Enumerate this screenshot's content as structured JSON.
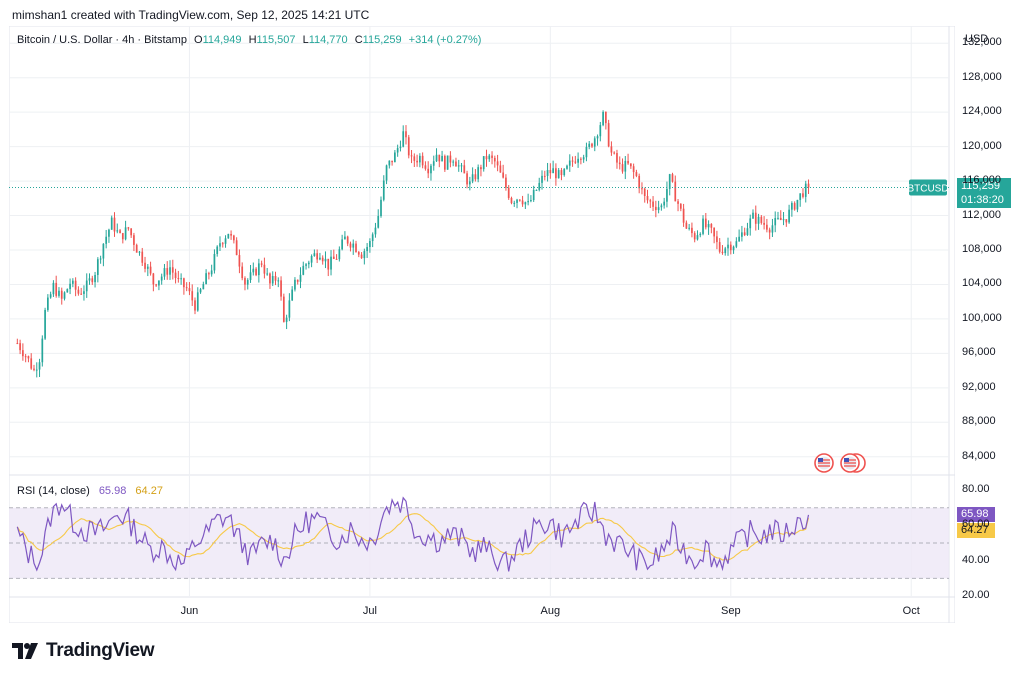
{
  "header": {
    "credit": "mimshan1 created with TradingView.com, Sep 12, 2025 14:21 UTC"
  },
  "legend": {
    "symbol": "Bitcoin / U.S. Dollar · 4h · Bitstamp",
    "open_label": "O",
    "open": "114,949",
    "high_label": "H",
    "high": "115,507",
    "low_label": "L",
    "low": "114,770",
    "close_label": "C",
    "close": "115,259",
    "change": "+314 (+0.27%)"
  },
  "price_axis": {
    "currency": "USD",
    "ticks": [
      "132,000",
      "128,000",
      "124,000",
      "120,000",
      "116,000",
      "112,000",
      "108,000",
      "104,000",
      "100,000",
      "96,000",
      "92,000",
      "88,000",
      "84,000"
    ],
    "tag_symbol": "BTCUSD",
    "tag_price": "115,259",
    "tag_countdown": "01:38:20"
  },
  "rsi": {
    "title": "RSI (14, close)",
    "value": "65.98",
    "ma_value": "64.27",
    "ticks": [
      "80.00",
      "60.00",
      "40.00",
      "20.00"
    ]
  },
  "time_axis": {
    "labels": [
      "Jun",
      "Jul",
      "Aug",
      "Sep",
      "Oct"
    ]
  },
  "footer": {
    "brand": "TradingView"
  },
  "colors": {
    "up": "#26a69a",
    "down": "#ef5350",
    "rsi_line": "#7e57c2",
    "rsi_ma": "#f7c948",
    "rsi_band": "#ede7f6",
    "grid": "#eef0f3",
    "last_price": "#26a69a"
  },
  "chart_data": {
    "type": "candlestick",
    "timeframe": "4h",
    "price_range": [
      82000,
      134000
    ],
    "rsi_range": [
      20,
      88
    ],
    "rsi_bands": [
      70,
      30
    ],
    "last_price": 115259,
    "path": [
      [
        0,
        97200
      ],
      [
        3,
        95800
      ],
      [
        6,
        94000
      ],
      [
        8,
        95500
      ],
      [
        10,
        100800
      ],
      [
        13,
        103800
      ],
      [
        16,
        102200
      ],
      [
        19,
        104200
      ],
      [
        22,
        103000
      ],
      [
        25,
        103800
      ],
      [
        28,
        105500
      ],
      [
        31,
        108800
      ],
      [
        34,
        111200
      ],
      [
        37,
        109500
      ],
      [
        40,
        110500
      ],
      [
        43,
        108200
      ],
      [
        46,
        106500
      ],
      [
        49,
        104200
      ],
      [
        52,
        105000
      ],
      [
        55,
        106000
      ],
      [
        58,
        104300
      ],
      [
        61,
        103500
      ],
      [
        64,
        101600
      ],
      [
        67,
        104000
      ],
      [
        70,
        106000
      ],
      [
        73,
        108900
      ],
      [
        76,
        110100
      ],
      [
        79,
        107800
      ],
      [
        82,
        104200
      ],
      [
        85,
        105200
      ],
      [
        88,
        106600
      ],
      [
        91,
        104000
      ],
      [
        94,
        105000
      ],
      [
        96,
        99500
      ],
      [
        98,
        101800
      ],
      [
        100,
        104000
      ],
      [
        103,
        106000
      ],
      [
        106,
        107200
      ],
      [
        109,
        107800
      ],
      [
        112,
        106200
      ],
      [
        115,
        107200
      ],
      [
        118,
        109300
      ],
      [
        121,
        108700
      ],
      [
        124,
        107600
      ],
      [
        127,
        108800
      ],
      [
        130,
        112000
      ],
      [
        133,
        117500
      ],
      [
        136,
        119000
      ],
      [
        139,
        121500
      ],
      [
        142,
        118300
      ],
      [
        145,
        118800
      ],
      [
        148,
        117600
      ],
      [
        151,
        119200
      ],
      [
        154,
        118000
      ],
      [
        157,
        118800
      ],
      [
        160,
        117200
      ],
      [
        163,
        115600
      ],
      [
        166,
        117200
      ],
      [
        169,
        118800
      ],
      [
        172,
        118200
      ],
      [
        175,
        116000
      ],
      [
        178,
        113800
      ],
      [
        181,
        114200
      ],
      [
        184,
        113200
      ],
      [
        187,
        115000
      ],
      [
        190,
        116800
      ],
      [
        193,
        117200
      ],
      [
        196,
        116300
      ],
      [
        199,
        117900
      ],
      [
        202,
        119100
      ],
      [
        205,
        119400
      ],
      [
        208,
        121100
      ],
      [
        211,
        123500
      ],
      [
        214,
        119200
      ],
      [
        217,
        117600
      ],
      [
        220,
        117800
      ],
      [
        223,
        116500
      ],
      [
        226,
        114000
      ],
      [
        229,
        113300
      ],
      [
        232,
        113000
      ],
      [
        235,
        116200
      ],
      [
        238,
        113400
      ],
      [
        241,
        110500
      ],
      [
        244,
        109600
      ],
      [
        247,
        111000
      ],
      [
        250,
        110000
      ],
      [
        253,
        108000
      ],
      [
        256,
        108600
      ],
      [
        259,
        108800
      ],
      [
        262,
        110400
      ],
      [
        265,
        111800
      ],
      [
        268,
        111200
      ],
      [
        271,
        110700
      ],
      [
        274,
        111300
      ],
      [
        277,
        111800
      ],
      [
        280,
        113300
      ],
      [
        283,
        114800
      ],
      [
        285,
        115259
      ]
    ],
    "rsi_path": [
      [
        0,
        56
      ],
      [
        4,
        44
      ],
      [
        8,
        40
      ],
      [
        12,
        65
      ],
      [
        16,
        74
      ],
      [
        20,
        62
      ],
      [
        24,
        57
      ],
      [
        28,
        56
      ],
      [
        32,
        59
      ],
      [
        36,
        67
      ],
      [
        40,
        63
      ],
      [
        44,
        54
      ],
      [
        48,
        46
      ],
      [
        52,
        48
      ],
      [
        56,
        41
      ],
      [
        60,
        38
      ],
      [
        64,
        50
      ],
      [
        68,
        55
      ],
      [
        72,
        63
      ],
      [
        76,
        65
      ],
      [
        80,
        52
      ],
      [
        84,
        42
      ],
      [
        88,
        49
      ],
      [
        92,
        52
      ],
      [
        96,
        40
      ],
      [
        100,
        54
      ],
      [
        104,
        62
      ],
      [
        108,
        64
      ],
      [
        112,
        56
      ],
      [
        116,
        52
      ],
      [
        120,
        58
      ],
      [
        124,
        52
      ],
      [
        128,
        51
      ],
      [
        132,
        68
      ],
      [
        136,
        74
      ],
      [
        140,
        72
      ],
      [
        144,
        55
      ],
      [
        148,
        54
      ],
      [
        152,
        51
      ],
      [
        156,
        55
      ],
      [
        160,
        52
      ],
      [
        164,
        45
      ],
      [
        168,
        48
      ],
      [
        172,
        42
      ],
      [
        176,
        38
      ],
      [
        180,
        46
      ],
      [
        184,
        54
      ],
      [
        188,
        60
      ],
      [
        192,
        62
      ],
      [
        196,
        54
      ],
      [
        200,
        59
      ],
      [
        204,
        66
      ],
      [
        208,
        68
      ],
      [
        212,
        55
      ],
      [
        216,
        50
      ],
      [
        220,
        46
      ],
      [
        224,
        40
      ],
      [
        228,
        38
      ],
      [
        232,
        45
      ],
      [
        236,
        55
      ],
      [
        240,
        46
      ],
      [
        244,
        40
      ],
      [
        248,
        48
      ],
      [
        252,
        38
      ],
      [
        256,
        44
      ],
      [
        260,
        51
      ],
      [
        264,
        56
      ],
      [
        268,
        54
      ],
      [
        272,
        57
      ],
      [
        276,
        55
      ],
      [
        280,
        60
      ],
      [
        284,
        64
      ],
      [
        285,
        65.98
      ]
    ],
    "date_markers": [
      {
        "label": "Jun",
        "index": 62
      },
      {
        "label": "Jul",
        "index": 127
      },
      {
        "label": "Aug",
        "index": 192
      },
      {
        "label": "Sep",
        "index": 257
      },
      {
        "label": "Oct",
        "index": 322
      }
    ],
    "x_range": [
      -3,
      332
    ]
  }
}
